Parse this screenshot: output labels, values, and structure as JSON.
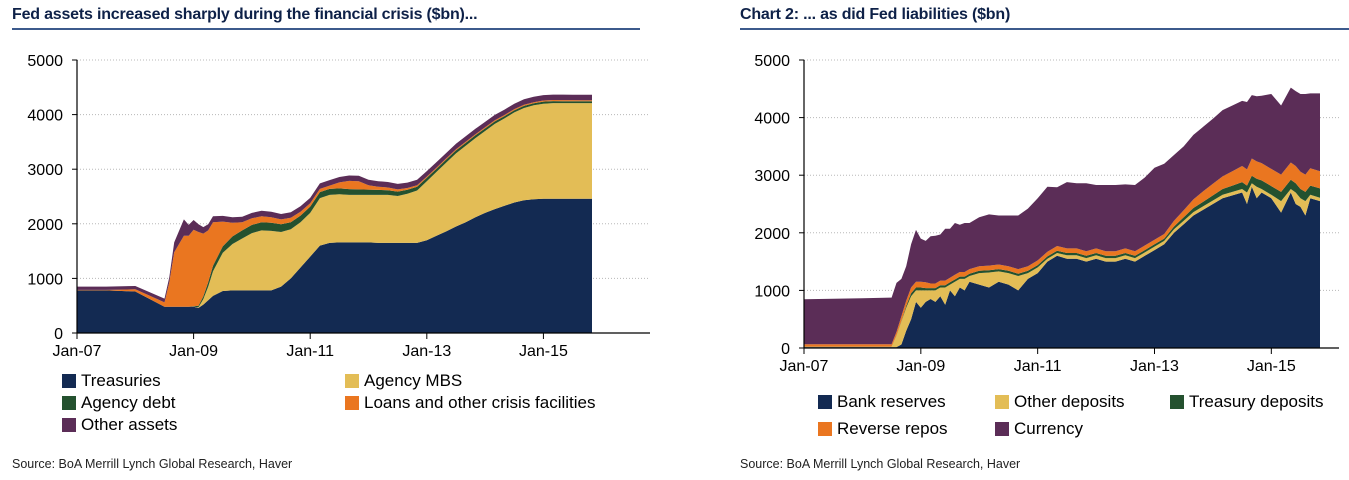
{
  "chart_data": [
    {
      "type": "area",
      "stacked": true,
      "title": "Fed assets increased sharply during the financial crisis ($bn)...",
      "xlabel": "",
      "ylabel": "",
      "ylim": [
        0,
        5000
      ],
      "yticks": [
        0,
        1000,
        2000,
        3000,
        4000,
        5000
      ],
      "xtick_labels": [
        "Jan-07",
        "Jan-09",
        "Jan-11",
        "Jan-13",
        "Jan-15"
      ],
      "xtick_values": [
        0,
        24,
        48,
        72,
        96
      ],
      "x_range_months": [
        0,
        106
      ],
      "grid": true,
      "legend_position": "bottom",
      "x": [
        0,
        6,
        12,
        18,
        19,
        20,
        22,
        23,
        24,
        25,
        26,
        27,
        28,
        30,
        32,
        34,
        36,
        38,
        40,
        42,
        44,
        46,
        48,
        50,
        52,
        54,
        56,
        58,
        60,
        62,
        64,
        66,
        68,
        70,
        72,
        74,
        76,
        78,
        80,
        82,
        84,
        86,
        88,
        90,
        92,
        94,
        96,
        98,
        100,
        102,
        104,
        106
      ],
      "series": [
        {
          "name": "Treasuries",
          "color": "#132a52",
          "values": [
            780,
            780,
            760,
            480,
            480,
            480,
            480,
            480,
            480,
            460,
            520,
            600,
            680,
            770,
            780,
            780,
            780,
            780,
            780,
            850,
            1000,
            1200,
            1400,
            1600,
            1650,
            1660,
            1660,
            1660,
            1660,
            1650,
            1650,
            1650,
            1650,
            1650,
            1700,
            1780,
            1860,
            1950,
            2030,
            2120,
            2200,
            2270,
            2330,
            2390,
            2430,
            2450,
            2460,
            2460,
            2460,
            2460,
            2460,
            2460
          ]
        },
        {
          "name": "Agency MBS",
          "color": "#e3bd56",
          "values": [
            0,
            0,
            0,
            0,
            0,
            0,
            0,
            0,
            0,
            10,
            100,
            250,
            450,
            700,
            850,
            950,
            1050,
            1100,
            1090,
            1000,
            900,
            830,
            800,
            870,
            880,
            880,
            870,
            870,
            870,
            880,
            880,
            860,
            900,
            960,
            1080,
            1170,
            1260,
            1340,
            1400,
            1450,
            1500,
            1560,
            1600,
            1650,
            1690,
            1720,
            1740,
            1750,
            1750,
            1750,
            1750,
            1750
          ]
        },
        {
          "name": "Agency debt",
          "color": "#24512f",
          "values": [
            0,
            0,
            0,
            0,
            0,
            0,
            0,
            0,
            10,
            30,
            50,
            80,
            100,
            120,
            140,
            150,
            150,
            150,
            150,
            140,
            130,
            120,
            115,
            110,
            110,
            108,
            105,
            100,
            97,
            90,
            85,
            80,
            75,
            70,
            65,
            60,
            57,
            55,
            52,
            50,
            47,
            45,
            42,
            40,
            40,
            38,
            38,
            37,
            36,
            35,
            34,
            33
          ]
        },
        {
          "name": "Loans and other crisis facilities",
          "color": "#ea7620",
          "values": [
            10,
            10,
            40,
            80,
            450,
            1000,
            1300,
            1300,
            1400,
            1350,
            1150,
            950,
            800,
            450,
            250,
            150,
            120,
            110,
            100,
            90,
            80,
            70,
            60,
            60,
            60,
            110,
            150,
            150,
            80,
            60,
            50,
            40,
            30,
            25,
            20,
            20,
            20,
            20,
            20,
            20,
            20,
            20,
            20,
            20,
            20,
            20,
            20,
            20,
            20,
            20,
            20,
            20
          ]
        },
        {
          "name": "Other assets",
          "color": "#5b2d57",
          "values": [
            60,
            60,
            60,
            70,
            90,
            180,
            300,
            200,
            180,
            140,
            120,
            110,
            110,
            105,
            100,
            100,
            100,
            100,
            100,
            100,
            100,
            100,
            100,
            100,
            100,
            100,
            100,
            100,
            100,
            100,
            100,
            100,
            100,
            100,
            100,
            100,
            100,
            100,
            100,
            100,
            100,
            100,
            100,
            100,
            100,
            100,
            100,
            100,
            100,
            100,
            100,
            100
          ]
        }
      ]
    },
    {
      "type": "area",
      "stacked": true,
      "title": "Chart 2: ... as did Fed liabilities ($bn)",
      "xlabel": "",
      "ylabel": "",
      "ylim": [
        0,
        5000
      ],
      "yticks": [
        0,
        1000,
        2000,
        3000,
        4000,
        5000
      ],
      "xtick_labels": [
        "Jan-07",
        "Jan-09",
        "Jan-11",
        "Jan-13",
        "Jan-15"
      ],
      "xtick_values": [
        0,
        24,
        48,
        72,
        96
      ],
      "x_range_months": [
        0,
        106
      ],
      "grid": true,
      "legend_position": "bottom",
      "x": [
        0,
        6,
        12,
        18,
        19,
        20,
        21,
        22,
        23,
        24,
        25,
        26,
        27,
        28,
        29,
        30,
        31,
        32,
        33,
        34,
        36,
        38,
        40,
        42,
        44,
        46,
        48,
        50,
        52,
        54,
        56,
        58,
        60,
        62,
        64,
        66,
        68,
        70,
        72,
        74,
        76,
        78,
        80,
        82,
        84,
        86,
        88,
        90,
        91,
        92,
        93,
        94,
        96,
        98,
        100,
        101,
        102,
        103,
        104,
        106
      ],
      "series": [
        {
          "name": "Bank reserves",
          "color": "#132a52",
          "values": [
            15,
            15,
            15,
            15,
            15,
            60,
            300,
            500,
            800,
            700,
            800,
            850,
            800,
            900,
            750,
            1000,
            900,
            1050,
            1000,
            1150,
            1100,
            1050,
            1150,
            1100,
            1000,
            1200,
            1300,
            1500,
            1600,
            1550,
            1550,
            1500,
            1550,
            1500,
            1500,
            1550,
            1500,
            1600,
            1700,
            1800,
            2000,
            2150,
            2300,
            2400,
            2500,
            2600,
            2650,
            2700,
            2500,
            2800,
            2600,
            2700,
            2600,
            2350,
            2700,
            2500,
            2450,
            2300,
            2600,
            2550
          ]
        },
        {
          "name": "Other deposits",
          "color": "#e3bd56",
          "values": [
            5,
            5,
            5,
            5,
            200,
            400,
            400,
            400,
            200,
            300,
            200,
            150,
            200,
            150,
            300,
            100,
            250,
            150,
            200,
            100,
            200,
            260,
            180,
            200,
            250,
            100,
            100,
            50,
            50,
            60,
            60,
            60,
            60,
            60,
            60,
            60,
            60,
            60,
            60,
            60,
            60,
            60,
            60,
            60,
            60,
            60,
            60,
            60,
            200,
            60,
            200,
            60,
            60,
            200,
            60,
            200,
            150,
            250,
            60,
            60
          ]
        },
        {
          "name": "Treasury deposits",
          "color": "#24512f",
          "values": [
            5,
            5,
            5,
            5,
            5,
            10,
            30,
            50,
            50,
            50,
            40,
            40,
            40,
            40,
            40,
            40,
            40,
            40,
            40,
            40,
            40,
            40,
            40,
            40,
            40,
            40,
            40,
            40,
            40,
            40,
            40,
            40,
            40,
            40,
            40,
            40,
            40,
            40,
            40,
            40,
            50,
            60,
            70,
            80,
            90,
            100,
            110,
            120,
            120,
            130,
            140,
            150,
            150,
            160,
            160,
            160,
            160,
            160,
            160,
            160
          ]
        },
        {
          "name": "Reverse repos",
          "color": "#ea7620",
          "values": [
            40,
            40,
            40,
            40,
            60,
            80,
            90,
            100,
            100,
            100,
            100,
            80,
            80,
            80,
            80,
            80,
            80,
            80,
            80,
            80,
            80,
            80,
            80,
            80,
            80,
            80,
            80,
            80,
            80,
            80,
            80,
            80,
            80,
            80,
            80,
            80,
            80,
            80,
            80,
            80,
            100,
            120,
            150,
            180,
            200,
            220,
            250,
            280,
            280,
            300,
            300,
            300,
            300,
            300,
            300,
            300,
            300,
            300,
            300,
            300
          ]
        },
        {
          "name": "Currency",
          "color": "#5b2d57",
          "values": [
            780,
            790,
            800,
            810,
            850,
            650,
            600,
            750,
            900,
            750,
            720,
            820,
            830,
            800,
            900,
            850,
            900,
            820,
            850,
            800,
            850,
            890,
            850,
            880,
            930,
            1000,
            1080,
            1130,
            1020,
            1150,
            1130,
            1180,
            1100,
            1150,
            1150,
            1110,
            1150,
            1180,
            1250,
            1220,
            1140,
            1110,
            1120,
            1120,
            1130,
            1150,
            1140,
            1130,
            1170,
            1100,
            1130,
            1170,
            1300,
            1200,
            1300,
            1300,
            1350,
            1400,
            1300,
            1350
          ]
        }
      ]
    }
  ],
  "panels": {
    "left": {
      "title": "Fed assets increased sharply during the financial crisis ($bn)...",
      "source": "Source: BoA Merrill Lynch Global Research, Haver"
    },
    "right": {
      "title": "Chart 2: ... as did Fed liabilities ($bn)",
      "source": "Source: BoA Merrill Lynch Global Research, Haver"
    }
  }
}
